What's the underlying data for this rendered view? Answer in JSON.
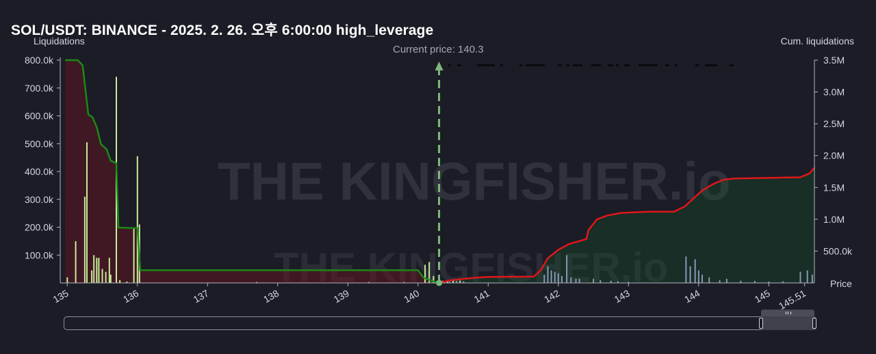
{
  "title": "SOL/USDT: BINANCE - 2025. 2. 26. 오후 6:00:00 high_leverage",
  "left_axis_label": "Liquidations",
  "right_axis_label": "Cum. liquidations",
  "current_price_label": "Current price: 140.3",
  "price_axis_label": "Price",
  "watermark": "THE KINGFISHER.io",
  "colors": {
    "background": "#1b1c26",
    "long_cum_line": "#1a8a14",
    "short_cum_line": "#e0171b",
    "long_fill": "rgba(110,20,34,0.45)",
    "short_fill": "rgba(20,90,40,0.30)",
    "long_bars": "#c9ec9a",
    "short_bars": "#8a96b8",
    "current_price_line": "#7fb87a"
  },
  "chart_data": {
    "type": "bar",
    "title": "SOL/USDT: BINANCE - 2025. 2. 26. 오후 6:00:00 high_leverage",
    "xlabel": "Price",
    "ylabel": "Liquidations",
    "y2label": "Cum. liquidations",
    "xlim": [
      134.9,
      145.65
    ],
    "ylim": [
      0,
      800000
    ],
    "y2lim": [
      0,
      3500000
    ],
    "x_ticks": [
      "135",
      "136",
      "137",
      "138",
      "139",
      "140",
      "141",
      "142",
      "143",
      "144",
      "145",
      "145.51"
    ],
    "y_ticks": [
      "100.0k",
      "200.0k",
      "300.0k",
      "400.0k",
      "500.0k",
      "600.0k",
      "700.0k",
      "800.0k"
    ],
    "y2_ticks": [
      "500.0k",
      "1.0M",
      "1.5M",
      "2.0M",
      "2.5M",
      "3.0M",
      "3.5M"
    ],
    "current_price": 140.3,
    "grid": false,
    "legend": "none",
    "series": [
      {
        "kind": "bars",
        "values": [
          [
            135.0,
            20000
          ],
          [
            135.12,
            150000
          ],
          [
            135.25,
            310000
          ],
          [
            135.28,
            505000
          ],
          [
            135.35,
            45000
          ],
          [
            135.38,
            100000
          ],
          [
            135.42,
            90000
          ],
          [
            135.45,
            90000
          ],
          [
            135.5,
            50000
          ],
          [
            135.55,
            40000
          ],
          [
            135.6,
            90000
          ],
          [
            135.62,
            30000
          ],
          [
            135.7,
            740000
          ],
          [
            135.75,
            10000
          ],
          [
            135.85,
            5000
          ],
          [
            135.95,
            200000
          ],
          [
            136.0,
            455000
          ],
          [
            136.03,
            210000
          ],
          [
            137.7,
            3000
          ],
          [
            139.3,
            3000
          ],
          [
            139.8,
            3000
          ],
          [
            140.1,
            65000
          ],
          [
            140.16,
            75000
          ],
          [
            140.22,
            25000
          ],
          [
            140.35,
            8000
          ],
          [
            140.42,
            10000
          ],
          [
            140.5,
            12000
          ],
          [
            140.6,
            8000
          ]
        ]
      },
      {
        "kind": "bars",
        "values": [
          [
            140.45,
            5000
          ],
          [
            140.55,
            7000
          ],
          [
            140.65,
            6000
          ],
          [
            141.8,
            30000
          ],
          [
            141.85,
            60000
          ],
          [
            141.9,
            45000
          ],
          [
            141.95,
            40000
          ],
          [
            142.0,
            35000
          ],
          [
            142.05,
            25000
          ],
          [
            142.12,
            100000
          ],
          [
            142.18,
            20000
          ],
          [
            142.25,
            15000
          ],
          [
            142.3,
            15000
          ],
          [
            142.5,
            15000
          ],
          [
            142.6,
            10000
          ],
          [
            142.75,
            8000
          ],
          [
            142.85,
            6000
          ],
          [
            143.0,
            4000
          ],
          [
            143.82,
            95000
          ],
          [
            143.88,
            60000
          ],
          [
            143.95,
            85000
          ],
          [
            144.0,
            45000
          ],
          [
            144.05,
            30000
          ],
          [
            144.15,
            20000
          ],
          [
            144.3,
            10000
          ],
          [
            144.4,
            15000
          ],
          [
            144.6,
            8000
          ],
          [
            144.8,
            7000
          ],
          [
            145.0,
            5000
          ],
          [
            145.2,
            6000
          ],
          [
            145.45,
            40000
          ],
          [
            145.55,
            45000
          ],
          [
            145.62,
            30000
          ]
        ]
      },
      {
        "kind": "cumulative",
        "values": [
          [
            134.97,
            3500000
          ],
          [
            135.15,
            3500000
          ],
          [
            135.22,
            3420000
          ],
          [
            135.3,
            2650000
          ],
          [
            135.36,
            2600000
          ],
          [
            135.42,
            2450000
          ],
          [
            135.48,
            2180000
          ],
          [
            135.56,
            2100000
          ],
          [
            135.62,
            1920000
          ],
          [
            135.7,
            1880000
          ],
          [
            135.73,
            870000
          ],
          [
            136.0,
            860000
          ],
          [
            136.04,
            200000
          ],
          [
            140.0,
            200000
          ],
          [
            140.08,
            80000
          ],
          [
            140.2,
            30000
          ],
          [
            140.3,
            0
          ]
        ]
      },
      {
        "kind": "cumulative",
        "values": [
          [
            140.3,
            0
          ],
          [
            140.45,
            40000
          ],
          [
            140.8,
            80000
          ],
          [
            141.0,
            95000
          ],
          [
            141.65,
            100000
          ],
          [
            141.75,
            200000
          ],
          [
            141.85,
            390000
          ],
          [
            142.0,
            520000
          ],
          [
            142.15,
            610000
          ],
          [
            142.4,
            690000
          ],
          [
            142.43,
            830000
          ],
          [
            142.55,
            1000000
          ],
          [
            142.7,
            1060000
          ],
          [
            142.9,
            1100000
          ],
          [
            143.3,
            1120000
          ],
          [
            143.65,
            1120000
          ],
          [
            143.8,
            1200000
          ],
          [
            143.95,
            1350000
          ],
          [
            144.05,
            1450000
          ],
          [
            144.2,
            1550000
          ],
          [
            144.35,
            1620000
          ],
          [
            144.5,
            1640000
          ],
          [
            145.0,
            1650000
          ],
          [
            145.45,
            1660000
          ],
          [
            145.58,
            1720000
          ],
          [
            145.65,
            1810000
          ]
        ]
      }
    ]
  }
}
